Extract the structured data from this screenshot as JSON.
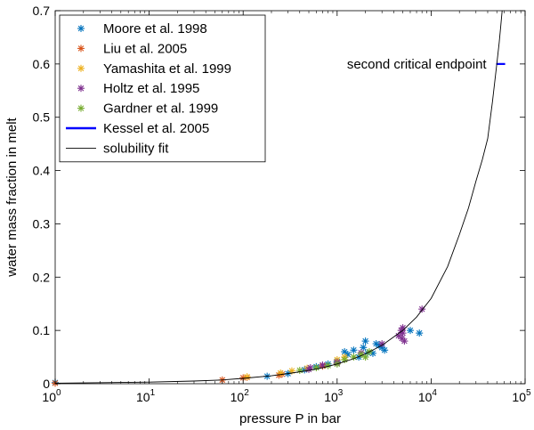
{
  "chart_data": {
    "type": "scatter",
    "title": "",
    "xlabel": "pressure P in bar",
    "ylabel": "water mass fraction in melt",
    "xscale": "log",
    "xlim": [
      1,
      100000
    ],
    "ylim": [
      0,
      0.7
    ],
    "xticks": [
      1,
      10,
      100,
      1000,
      10000,
      100000
    ],
    "xtick_labels": [
      {
        "base": "10",
        "exp": "0"
      },
      {
        "base": "10",
        "exp": "1"
      },
      {
        "base": "10",
        "exp": "2"
      },
      {
        "base": "10",
        "exp": "3"
      },
      {
        "base": "10",
        "exp": "4"
      },
      {
        "base": "10",
        "exp": "5"
      }
    ],
    "yticks": [
      "0",
      "0.1",
      "0.2",
      "0.3",
      "0.4",
      "0.5",
      "0.6",
      "0.7"
    ],
    "grid": false,
    "legend_position": "top-left",
    "series": [
      {
        "name": "Moore et al. 1998",
        "color": "#0072BD",
        "marker": "asterisk",
        "points": [
          [
            1,
            0.002
          ],
          [
            180,
            0.014
          ],
          [
            300,
            0.019
          ],
          [
            450,
            0.026
          ],
          [
            600,
            0.032
          ],
          [
            800,
            0.037
          ],
          [
            1000,
            0.042
          ],
          [
            1300,
            0.055
          ],
          [
            1500,
            0.063
          ],
          [
            1700,
            0.05
          ],
          [
            1900,
            0.068
          ],
          [
            2100,
            0.058
          ],
          [
            2400,
            0.057
          ],
          [
            2800,
            0.072
          ],
          [
            3000,
            0.068
          ],
          [
            3200,
            0.063
          ],
          [
            2600,
            0.075
          ],
          [
            6000,
            0.1
          ],
          [
            7500,
            0.095
          ],
          [
            1200,
            0.06
          ],
          [
            2000,
            0.08
          ]
        ]
      },
      {
        "name": "Liu et al. 2005",
        "color": "#D95319",
        "marker": "asterisk",
        "points": [
          [
            1,
            0.001
          ],
          [
            60,
            0.007
          ],
          [
            100,
            0.011
          ],
          [
            110,
            0.012
          ],
          [
            240,
            0.016
          ],
          [
            260,
            0.018
          ],
          [
            700,
            0.033
          ]
        ]
      },
      {
        "name": "Yamashita et al. 1999",
        "color": "#EDB120",
        "marker": "asterisk",
        "points": [
          [
            110,
            0.013
          ],
          [
            250,
            0.02
          ],
          [
            330,
            0.024
          ],
          [
            480,
            0.029
          ],
          [
            1000,
            0.045
          ],
          [
            1200,
            0.05
          ]
        ]
      },
      {
        "name": "Holtz et al. 1995",
        "color": "#7E2F8E",
        "marker": "asterisk",
        "points": [
          [
            500,
            0.027
          ],
          [
            520,
            0.03
          ],
          [
            700,
            0.035
          ],
          [
            1000,
            0.04
          ],
          [
            1800,
            0.058
          ],
          [
            3000,
            0.075
          ],
          [
            4500,
            0.09
          ],
          [
            4800,
            0.1
          ],
          [
            5000,
            0.095
          ],
          [
            5000,
            0.105
          ],
          [
            4900,
            0.085
          ],
          [
            5200,
            0.08
          ],
          [
            8000,
            0.14
          ],
          [
            1000,
            0.038
          ]
        ]
      },
      {
        "name": "Gardner et al. 1999",
        "color": "#77AC30",
        "marker": "asterisk",
        "points": [
          [
            400,
            0.025
          ],
          [
            600,
            0.03
          ],
          [
            800,
            0.034
          ],
          [
            1000,
            0.037
          ],
          [
            1200,
            0.045
          ],
          [
            1500,
            0.05
          ],
          [
            1800,
            0.055
          ],
          [
            2000,
            0.05
          ],
          [
            2200,
            0.06
          ]
        ]
      },
      {
        "name": "Kessel et al. 2005",
        "color": "#0000FF",
        "marker": "hline",
        "points": [
          [
            55000,
            0.6
          ]
        ]
      },
      {
        "name": "solubility fit",
        "color": "#000000",
        "marker": "line",
        "points": [
          [
            1,
            0.001
          ],
          [
            10,
            0.003
          ],
          [
            30,
            0.005
          ],
          [
            60,
            0.007
          ],
          [
            100,
            0.01
          ],
          [
            200,
            0.015
          ],
          [
            300,
            0.019
          ],
          [
            500,
            0.025
          ],
          [
            700,
            0.03
          ],
          [
            1000,
            0.037
          ],
          [
            1500,
            0.047
          ],
          [
            2000,
            0.056
          ],
          [
            3000,
            0.072
          ],
          [
            5000,
            0.1
          ],
          [
            7000,
            0.125
          ],
          [
            10000,
            0.16
          ],
          [
            15000,
            0.22
          ],
          [
            20000,
            0.28
          ],
          [
            25000,
            0.33
          ],
          [
            30000,
            0.38
          ],
          [
            35000,
            0.42
          ],
          [
            40000,
            0.46
          ],
          [
            45000,
            0.53
          ],
          [
            50000,
            0.6
          ],
          [
            53000,
            0.64
          ],
          [
            55000,
            0.67
          ],
          [
            57000,
            0.7
          ]
        ]
      }
    ],
    "annotations": [
      {
        "text": "second critical endpoint",
        "x": 55000,
        "y": 0.6,
        "anchor": "left-of-point"
      }
    ]
  }
}
